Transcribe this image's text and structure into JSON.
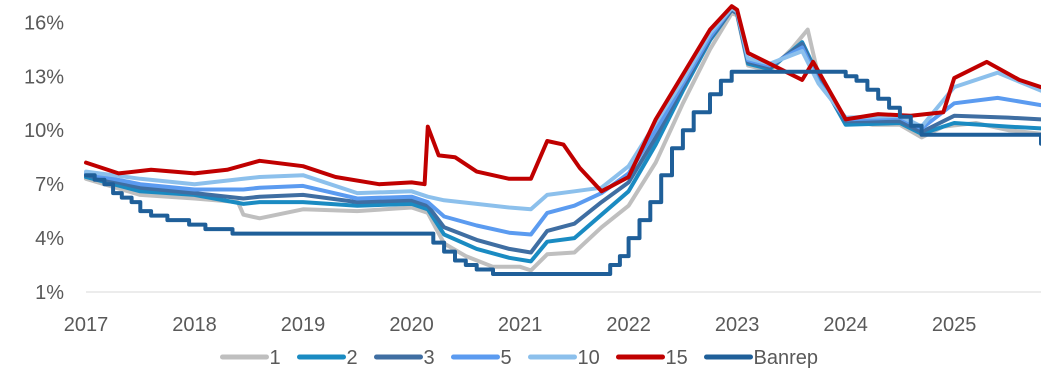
{
  "chart_data": {
    "type": "line",
    "title": "",
    "xlabel": "",
    "ylabel": "",
    "xlim": [
      2017,
      2025.8
    ],
    "ylim": [
      1,
      16.8
    ],
    "x_ticks": [
      {
        "value": 2017,
        "label": "2017"
      },
      {
        "value": 2018,
        "label": "2018"
      },
      {
        "value": 2019,
        "label": "2019"
      },
      {
        "value": 2020,
        "label": "2020"
      },
      {
        "value": 2021,
        "label": "2021"
      },
      {
        "value": 2022,
        "label": "2022"
      },
      {
        "value": 2023,
        "label": "2023"
      },
      {
        "value": 2024,
        "label": "2024"
      },
      {
        "value": 2025,
        "label": "2025"
      }
    ],
    "y_ticks": [
      {
        "value": 1,
        "label": "1%"
      },
      {
        "value": 4,
        "label": "4%"
      },
      {
        "value": 7,
        "label": "7%"
      },
      {
        "value": 10,
        "label": "10%"
      },
      {
        "value": 13,
        "label": "13%"
      },
      {
        "value": 16,
        "label": "16%"
      }
    ],
    "grid": false,
    "legend_position": "bottom",
    "series": [
      {
        "name": "1",
        "color": "#BFBFBF",
        "step": false,
        "points": [
          [
            2017,
            7.3
          ],
          [
            2017.5,
            6.4
          ],
          [
            2018,
            6.2
          ],
          [
            2018.4,
            6.0
          ],
          [
            2018.45,
            5.3
          ],
          [
            2018.6,
            5.1
          ],
          [
            2019,
            5.6
          ],
          [
            2019.5,
            5.5
          ],
          [
            2020,
            5.7
          ],
          [
            2020.15,
            5.4
          ],
          [
            2020.3,
            3.7
          ],
          [
            2020.5,
            3.0
          ],
          [
            2020.75,
            2.4
          ],
          [
            2021,
            2.4
          ],
          [
            2021.1,
            2.2
          ],
          [
            2021.25,
            3.1
          ],
          [
            2021.5,
            3.2
          ],
          [
            2021.75,
            4.6
          ],
          [
            2022,
            5.8
          ],
          [
            2022.25,
            8.2
          ],
          [
            2022.5,
            11.5
          ],
          [
            2022.75,
            14.5
          ],
          [
            2022.95,
            16.5
          ],
          [
            2023,
            16.4
          ],
          [
            2023.1,
            13.6
          ],
          [
            2023.3,
            13.3
          ],
          [
            2023.5,
            14.5
          ],
          [
            2023.65,
            15.6
          ],
          [
            2023.75,
            13.0
          ],
          [
            2024,
            10.6
          ],
          [
            2024.25,
            10.3
          ],
          [
            2024.5,
            10.3
          ],
          [
            2024.7,
            9.6
          ],
          [
            2024.9,
            10.2
          ],
          [
            2025.2,
            10.4
          ],
          [
            2025.5,
            10.0
          ],
          [
            2025.8,
            9.8
          ]
        ]
      },
      {
        "name": "2",
        "color": "#1A8BC2",
        "step": false,
        "points": [
          [
            2017,
            7.4
          ],
          [
            2017.5,
            6.6
          ],
          [
            2018,
            6.4
          ],
          [
            2018.45,
            5.9
          ],
          [
            2018.6,
            6.0
          ],
          [
            2019,
            6.0
          ],
          [
            2019.5,
            5.8
          ],
          [
            2020,
            5.9
          ],
          [
            2020.15,
            5.6
          ],
          [
            2020.3,
            4.2
          ],
          [
            2020.6,
            3.4
          ],
          [
            2020.9,
            2.9
          ],
          [
            2021.1,
            2.7
          ],
          [
            2021.25,
            3.8
          ],
          [
            2021.5,
            4.0
          ],
          [
            2021.75,
            5.3
          ],
          [
            2022,
            6.6
          ],
          [
            2022.25,
            9.2
          ],
          [
            2022.5,
            12.2
          ],
          [
            2022.75,
            15.0
          ],
          [
            2022.95,
            16.7
          ],
          [
            2023,
            16.5
          ],
          [
            2023.1,
            13.7
          ],
          [
            2023.3,
            13.4
          ],
          [
            2023.6,
            14.9
          ],
          [
            2023.75,
            13.0
          ],
          [
            2024,
            10.3
          ],
          [
            2024.5,
            10.4
          ],
          [
            2024.7,
            9.8
          ],
          [
            2025,
            10.4
          ],
          [
            2025.5,
            10.2
          ],
          [
            2025.8,
            10.1
          ]
        ]
      },
      {
        "name": "3",
        "color": "#3F6EA2",
        "step": false,
        "points": [
          [
            2017,
            7.5
          ],
          [
            2017.5,
            6.8
          ],
          [
            2018,
            6.5
          ],
          [
            2018.45,
            6.2
          ],
          [
            2018.6,
            6.3
          ],
          [
            2019,
            6.4
          ],
          [
            2019.5,
            6.0
          ],
          [
            2020,
            6.1
          ],
          [
            2020.15,
            5.8
          ],
          [
            2020.3,
            4.6
          ],
          [
            2020.6,
            3.9
          ],
          [
            2020.9,
            3.4
          ],
          [
            2021.1,
            3.2
          ],
          [
            2021.25,
            4.4
          ],
          [
            2021.5,
            4.8
          ],
          [
            2021.75,
            6.0
          ],
          [
            2022,
            7.1
          ],
          [
            2022.25,
            9.6
          ],
          [
            2022.5,
            12.4
          ],
          [
            2022.75,
            15.1
          ],
          [
            2022.95,
            16.7
          ],
          [
            2023,
            16.5
          ],
          [
            2023.1,
            13.8
          ],
          [
            2023.3,
            13.5
          ],
          [
            2023.6,
            14.8
          ],
          [
            2023.75,
            12.8
          ],
          [
            2024,
            10.5
          ],
          [
            2024.5,
            10.5
          ],
          [
            2024.7,
            9.9
          ],
          [
            2025,
            10.8
          ],
          [
            2025.5,
            10.7
          ],
          [
            2025.8,
            10.6
          ]
        ]
      },
      {
        "name": "5",
        "color": "#5B9BF0",
        "step": false,
        "points": [
          [
            2017,
            7.6
          ],
          [
            2017.5,
            7.0
          ],
          [
            2018,
            6.7
          ],
          [
            2018.45,
            6.7
          ],
          [
            2018.6,
            6.8
          ],
          [
            2019,
            6.9
          ],
          [
            2019.5,
            6.2
          ],
          [
            2020,
            6.3
          ],
          [
            2020.15,
            6.0
          ],
          [
            2020.3,
            5.2
          ],
          [
            2020.6,
            4.7
          ],
          [
            2020.9,
            4.3
          ],
          [
            2021.1,
            4.2
          ],
          [
            2021.25,
            5.4
          ],
          [
            2021.5,
            5.8
          ],
          [
            2021.75,
            6.5
          ],
          [
            2022,
            7.6
          ],
          [
            2022.25,
            10.0
          ],
          [
            2022.5,
            12.6
          ],
          [
            2022.75,
            15.2
          ],
          [
            2022.95,
            16.8
          ],
          [
            2023,
            16.6
          ],
          [
            2023.1,
            13.9
          ],
          [
            2023.3,
            13.6
          ],
          [
            2023.6,
            14.6
          ],
          [
            2023.75,
            12.7
          ],
          [
            2024,
            10.6
          ],
          [
            2024.5,
            10.7
          ],
          [
            2024.7,
            10.1
          ],
          [
            2025,
            11.5
          ],
          [
            2025.4,
            11.8
          ],
          [
            2025.8,
            11.4
          ]
        ]
      },
      {
        "name": "10",
        "color": "#8CC0EC",
        "step": false,
        "points": [
          [
            2017,
            7.7
          ],
          [
            2017.5,
            7.3
          ],
          [
            2018,
            7.0
          ],
          [
            2018.45,
            7.3
          ],
          [
            2018.6,
            7.4
          ],
          [
            2019,
            7.5
          ],
          [
            2019.5,
            6.5
          ],
          [
            2020,
            6.6
          ],
          [
            2020.15,
            6.3
          ],
          [
            2020.3,
            6.1
          ],
          [
            2020.6,
            5.9
          ],
          [
            2020.9,
            5.7
          ],
          [
            2021.1,
            5.6
          ],
          [
            2021.25,
            6.4
          ],
          [
            2021.5,
            6.6
          ],
          [
            2021.75,
            6.8
          ],
          [
            2022,
            8.0
          ],
          [
            2022.25,
            10.4
          ],
          [
            2022.5,
            12.8
          ],
          [
            2022.75,
            15.4
          ],
          [
            2022.95,
            16.8
          ],
          [
            2023,
            16.6
          ],
          [
            2023.1,
            14.0
          ],
          [
            2023.3,
            13.7
          ],
          [
            2023.6,
            14.4
          ],
          [
            2023.75,
            12.6
          ],
          [
            2024,
            10.7
          ],
          [
            2024.5,
            10.8
          ],
          [
            2024.7,
            10.2
          ],
          [
            2025,
            12.4
          ],
          [
            2025.4,
            13.2
          ],
          [
            2025.8,
            12.2
          ]
        ]
      },
      {
        "name": "15",
        "color": "#C00000",
        "step": false,
        "points": [
          [
            2017,
            8.2
          ],
          [
            2017.3,
            7.6
          ],
          [
            2017.6,
            7.8
          ],
          [
            2018,
            7.6
          ],
          [
            2018.3,
            7.8
          ],
          [
            2018.6,
            8.3
          ],
          [
            2019,
            8.0
          ],
          [
            2019.3,
            7.4
          ],
          [
            2019.7,
            7.0
          ],
          [
            2020,
            7.1
          ],
          [
            2020.12,
            7.0
          ],
          [
            2020.15,
            10.2
          ],
          [
            2020.25,
            8.6
          ],
          [
            2020.4,
            8.5
          ],
          [
            2020.6,
            7.7
          ],
          [
            2020.9,
            7.3
          ],
          [
            2021.1,
            7.3
          ],
          [
            2021.25,
            9.4
          ],
          [
            2021.4,
            9.2
          ],
          [
            2021.55,
            7.9
          ],
          [
            2021.75,
            6.6
          ],
          [
            2022,
            7.4
          ],
          [
            2022.25,
            10.6
          ],
          [
            2022.5,
            13.1
          ],
          [
            2022.75,
            15.6
          ],
          [
            2022.95,
            16.9
          ],
          [
            2023,
            16.7
          ],
          [
            2023.1,
            14.3
          ],
          [
            2023.3,
            13.7
          ],
          [
            2023.6,
            12.8
          ],
          [
            2023.7,
            13.8
          ],
          [
            2023.85,
            12.2
          ],
          [
            2024,
            10.6
          ],
          [
            2024.3,
            10.9
          ],
          [
            2024.6,
            10.8
          ],
          [
            2024.9,
            11.0
          ],
          [
            2025,
            12.9
          ],
          [
            2025.3,
            13.8
          ],
          [
            2025.6,
            12.8
          ],
          [
            2025.8,
            12.4
          ]
        ]
      },
      {
        "name": "Banrep",
        "color": "#1F5F99",
        "step": true,
        "points": [
          [
            2017,
            7.5
          ],
          [
            2017.08,
            7.25
          ],
          [
            2017.17,
            7.0
          ],
          [
            2017.25,
            6.5
          ],
          [
            2017.33,
            6.25
          ],
          [
            2017.42,
            6.0
          ],
          [
            2017.5,
            5.5
          ],
          [
            2017.6,
            5.25
          ],
          [
            2017.75,
            5.0
          ],
          [
            2017.95,
            4.75
          ],
          [
            2018.1,
            4.5
          ],
          [
            2018.35,
            4.25
          ],
          [
            2020.1,
            4.25
          ],
          [
            2020.2,
            3.75
          ],
          [
            2020.3,
            3.25
          ],
          [
            2020.4,
            2.75
          ],
          [
            2020.5,
            2.5
          ],
          [
            2020.6,
            2.25
          ],
          [
            2020.75,
            2.0
          ],
          [
            2021.75,
            2.0
          ],
          [
            2021.83,
            2.5
          ],
          [
            2021.92,
            3.0
          ],
          [
            2022.0,
            4.0
          ],
          [
            2022.1,
            5.0
          ],
          [
            2022.2,
            6.0
          ],
          [
            2022.3,
            7.5
          ],
          [
            2022.4,
            9.0
          ],
          [
            2022.5,
            10.0
          ],
          [
            2022.6,
            11.0
          ],
          [
            2022.75,
            12.0
          ],
          [
            2022.85,
            12.75
          ],
          [
            2022.95,
            13.25
          ],
          [
            2023.9,
            13.25
          ],
          [
            2024.0,
            13.0
          ],
          [
            2024.1,
            12.75
          ],
          [
            2024.2,
            12.25
          ],
          [
            2024.3,
            11.75
          ],
          [
            2024.4,
            11.25
          ],
          [
            2024.5,
            10.75
          ],
          [
            2024.6,
            10.25
          ],
          [
            2024.7,
            9.75
          ],
          [
            2025.8,
            9.25
          ]
        ]
      }
    ]
  }
}
